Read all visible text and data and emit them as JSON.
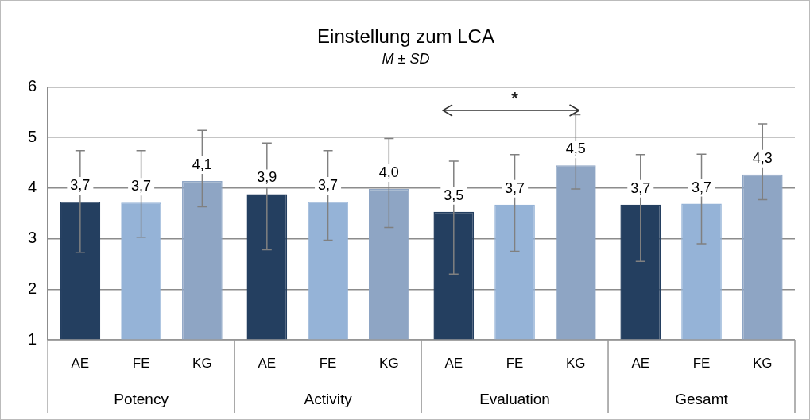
{
  "chart_data": {
    "type": "bar",
    "title": "Einstellung zum LCA",
    "subtitle": "M ± SD",
    "categories": [
      "Potency",
      "Activity",
      "Evaluation",
      "Gesamt"
    ],
    "series": [
      {
        "name": "AE",
        "color": "#243f60",
        "values": [
          3.73,
          3.88,
          3.53,
          3.67
        ],
        "errors": [
          [
            2.73,
            4.74
          ],
          [
            2.78,
            4.89
          ],
          [
            2.3,
            4.53
          ],
          [
            2.55,
            4.66
          ]
        ],
        "value_labels": [
          "3,7",
          "3,9",
          "3,5",
          "3,7"
        ]
      },
      {
        "name": "FE",
        "color": "#95b3d7",
        "values": [
          3.71,
          3.73,
          3.67,
          3.69
        ],
        "errors": [
          [
            3.03,
            4.74
          ],
          [
            2.97,
            4.74
          ],
          [
            2.75,
            4.66
          ],
          [
            2.9,
            4.67
          ]
        ],
        "value_labels": [
          "3,7",
          "3,7",
          "3,7",
          "3,7"
        ]
      },
      {
        "name": "KG",
        "color": "#8ea5c4",
        "values": [
          4.14,
          3.98,
          4.45,
          4.27
        ],
        "errors": [
          [
            3.63,
            5.14
          ],
          [
            3.22,
            4.98
          ],
          [
            3.98,
            5.45
          ],
          [
            3.77,
            5.27
          ]
        ],
        "value_labels": [
          "4,1",
          "4,0",
          "4,5",
          "4,3"
        ]
      }
    ],
    "ylim": [
      1,
      6
    ],
    "yticks": [
      1,
      2,
      3,
      4,
      5,
      6
    ],
    "grid": "y",
    "legend": false,
    "annotations": [
      "*"
    ]
  }
}
